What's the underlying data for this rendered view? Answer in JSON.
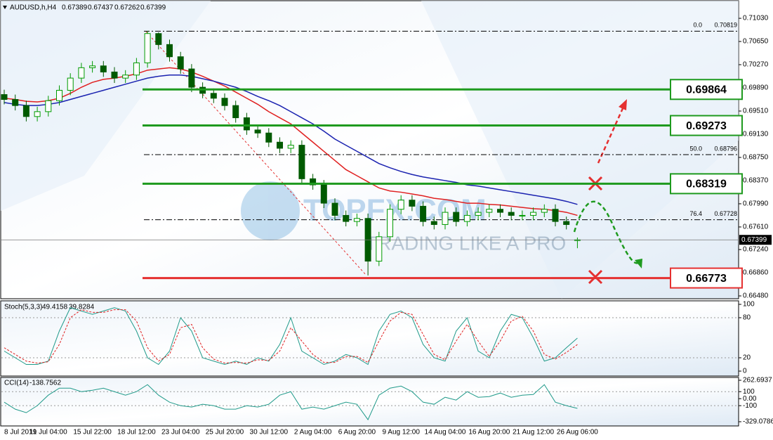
{
  "chart_data": [
    {
      "type": "candlestick",
      "symbol": "AUDUSD,h,H4",
      "categories": [
        "8 Jul 2019",
        null,
        null,
        null,
        "11 Jul 04:00",
        null,
        null,
        null,
        "15 Jul 22:00",
        null,
        null,
        null,
        "18 Jul 12:00",
        null,
        null,
        null,
        "23 Jul 04:00",
        null,
        null,
        null,
        "25 Jul 20:00",
        null,
        null,
        null,
        "30 Jul 12:00",
        null,
        null,
        null,
        "2 Aug 04:00",
        null,
        null,
        null,
        "6 Aug 20:00",
        null,
        null,
        null,
        "9 Aug 12:00",
        null,
        null,
        null,
        "14 Aug 04:00",
        null,
        null,
        null,
        "16 Aug 20:00",
        null,
        null,
        null,
        "21 Aug 12:00",
        null,
        null,
        null,
        "26 Aug 06:00"
      ],
      "open": [
        0.6978,
        0.697,
        0.696,
        0.6942,
        0.695,
        0.6968,
        0.6985,
        0.7005,
        0.7022,
        0.7025,
        0.7015,
        0.7005,
        0.701,
        0.703,
        0.7078,
        0.706,
        0.704,
        0.702,
        0.699,
        0.698,
        0.6972,
        0.696,
        0.694,
        0.692,
        0.6915,
        0.69,
        0.689,
        0.6895,
        0.684,
        0.683,
        0.68,
        0.678,
        0.677,
        0.6775,
        0.6705,
        0.6745,
        0.679,
        0.6805,
        0.6795,
        0.677,
        0.6765,
        0.6785,
        0.677,
        0.678,
        0.6785,
        0.679,
        0.6785,
        0.678,
        0.678,
        0.6785,
        0.679,
        0.677,
        0.67389
      ],
      "high": [
        0.6986,
        0.6978,
        0.6968,
        0.6958,
        0.6976,
        0.6993,
        0.7013,
        0.703,
        0.7033,
        0.7033,
        0.7023,
        0.7018,
        0.7038,
        0.70819,
        0.708,
        0.7068,
        0.7048,
        0.7028,
        0.6998,
        0.6988,
        0.698,
        0.6968,
        0.6948,
        0.6928,
        0.6923,
        0.6908,
        0.6903,
        0.6903,
        0.6848,
        0.6838,
        0.6808,
        0.6788,
        0.6783,
        0.6783,
        0.6753,
        0.6798,
        0.6813,
        0.6813,
        0.6803,
        0.6778,
        0.6793,
        0.6793,
        0.6788,
        0.6793,
        0.6798,
        0.6798,
        0.6793,
        0.6788,
        0.6793,
        0.6798,
        0.6798,
        0.6778,
        0.67437
      ],
      "low": [
        0.6962,
        0.6952,
        0.6934,
        0.6934,
        0.6942,
        0.696,
        0.6977,
        0.6997,
        0.7014,
        0.7007,
        0.6997,
        0.6997,
        0.7002,
        0.7022,
        0.7052,
        0.7032,
        0.7012,
        0.6982,
        0.6972,
        0.6964,
        0.6952,
        0.6932,
        0.6912,
        0.6907,
        0.6892,
        0.6882,
        0.6882,
        0.6832,
        0.6822,
        0.6792,
        0.6772,
        0.6762,
        0.6762,
        0.66815,
        0.6697,
        0.6737,
        0.6782,
        0.6787,
        0.6762,
        0.6757,
        0.6757,
        0.6762,
        0.6762,
        0.6772,
        0.6777,
        0.6777,
        0.6772,
        0.6772,
        0.6772,
        0.6777,
        0.6762,
        0.6757,
        0.67262
      ],
      "close": [
        0.697,
        0.696,
        0.6942,
        0.695,
        0.6968,
        0.6985,
        0.7005,
        0.7022,
        0.7025,
        0.7015,
        0.7005,
        0.701,
        0.703,
        0.7078,
        0.706,
        0.704,
        0.702,
        0.699,
        0.698,
        0.6972,
        0.696,
        0.694,
        0.692,
        0.6915,
        0.69,
        0.689,
        0.6895,
        0.684,
        0.683,
        0.68,
        0.678,
        0.677,
        0.6775,
        0.6705,
        0.6745,
        0.679,
        0.6805,
        0.6795,
        0.677,
        0.6765,
        0.6785,
        0.677,
        0.678,
        0.6785,
        0.679,
        0.6785,
        0.678,
        0.678,
        0.6785,
        0.679,
        0.677,
        0.6765,
        0.67399
      ],
      "up_color": "#009a00",
      "down_color": "#005a00",
      "overlays": [
        {
          "color": "#e02020",
          "values": [
            0.6972,
            0.697,
            0.6967,
            0.6966,
            0.6968,
            0.6972,
            0.698,
            0.699,
            0.6998,
            0.7003,
            0.7005,
            0.7008,
            0.7012,
            0.7018,
            0.702,
            0.7022,
            0.702,
            0.7015,
            0.7008,
            0.7,
            0.6992,
            0.6982,
            0.6972,
            0.6962,
            0.695,
            0.694,
            0.693,
            0.6915,
            0.69,
            0.6885,
            0.687,
            0.6855,
            0.6845,
            0.6835,
            0.6825,
            0.682,
            0.6818,
            0.6815,
            0.6812,
            0.6808,
            0.6806,
            0.6803,
            0.68,
            0.68,
            0.6798,
            0.6797,
            0.6795,
            0.6793,
            0.6791,
            0.679,
            0.6788,
            0.6785,
            0.678
          ]
        },
        {
          "color": "#1a22b0",
          "values": [
            0.6965,
            0.6962,
            0.696,
            0.696,
            0.6962,
            0.6965,
            0.697,
            0.6975,
            0.698,
            0.6985,
            0.699,
            0.6995,
            0.7,
            0.7005,
            0.7008,
            0.701,
            0.701,
            0.7008,
            0.7004,
            0.7,
            0.6995,
            0.699,
            0.6983,
            0.6975,
            0.6968,
            0.696,
            0.695,
            0.694,
            0.693,
            0.6918,
            0.6905,
            0.6895,
            0.6885,
            0.6875,
            0.6865,
            0.6858,
            0.6852,
            0.6847,
            0.6843,
            0.684,
            0.6837,
            0.6834,
            0.683,
            0.6828,
            0.6825,
            0.6822,
            0.6819,
            0.6816,
            0.6813,
            0.681,
            0.6807,
            0.6803,
            0.6798
          ]
        }
      ],
      "levels": [
        {
          "value": 0.69864,
          "color": "#1e9a1e"
        },
        {
          "value": 0.69273,
          "color": "#1e9a1e"
        },
        {
          "value": 0.68319,
          "color": "#1e9a1e"
        },
        {
          "value": 0.66773,
          "color": "#e53030"
        }
      ],
      "fib_levels": [
        {
          "label": "0.0",
          "value": 0.70819
        },
        {
          "label": "50.0",
          "value": 0.68796
        },
        {
          "label": "76.4",
          "value": 0.67728
        }
      ],
      "watermark": {
        "brand": "TOPFX.COM",
        "slogan": "TRADING LIKE A PRO"
      },
      "ylim": [
        0.66434,
        0.7133
      ],
      "yticks": [
        {
          "value": 0.7103,
          "label": "0.71030"
        },
        {
          "value": 0.7065,
          "label": "0.70650"
        },
        {
          "value": 0.7027,
          "label": "0.70270"
        },
        {
          "value": 0.6989,
          "label": "0.69890"
        },
        {
          "value": 0.6951,
          "label": "0.69510"
        },
        {
          "value": 0.6913,
          "label": "0.69130"
        },
        {
          "value": 0.6875,
          "label": "0.68750"
        },
        {
          "value": 0.6837,
          "label": "0.68370"
        },
        {
          "value": 0.6799,
          "label": "0.67990"
        },
        {
          "value": 0.6761,
          "label": "0.67610"
        },
        {
          "value": 0.6724,
          "label": "0.67240"
        },
        {
          "value": 0.6686,
          "label": "0.66860"
        },
        {
          "value": 0.6648,
          "label": "0.66480"
        }
      ]
    },
    {
      "type": "line",
      "name": "Stoch(5,3,3)",
      "series": [
        {
          "color": "#209a8a",
          "values": [
            30,
            20,
            10,
            10,
            15,
            60,
            95,
            90,
            85,
            90,
            95,
            90,
            60,
            20,
            10,
            30,
            80,
            60,
            20,
            15,
            10,
            15,
            10,
            20,
            15,
            40,
            80,
            30,
            20,
            10,
            15,
            25,
            20,
            10,
            60,
            85,
            90,
            80,
            40,
            20,
            15,
            60,
            80,
            30,
            20,
            60,
            85,
            80,
            50,
            15,
            20,
            35,
            49.4158
          ]
        },
        {
          "color": "#e02020",
          "dashed": true,
          "values": [
            35,
            25,
            15,
            12,
            14,
            40,
            80,
            92,
            88,
            88,
            92,
            92,
            75,
            35,
            15,
            25,
            65,
            70,
            35,
            18,
            12,
            13,
            12,
            17,
            16,
            30,
            65,
            45,
            25,
            13,
            13,
            22,
            22,
            13,
            45,
            75,
            88,
            85,
            55,
            25,
            17,
            45,
            70,
            45,
            22,
            45,
            75,
            82,
            60,
            25,
            18,
            28,
            39.8284
          ]
        }
      ],
      "ylim": [
        0,
        100
      ],
      "yticks": [
        100,
        80,
        20,
        0
      ],
      "grid_ticks": [
        80,
        20
      ]
    },
    {
      "type": "line",
      "name": "CCI(14)",
      "series": [
        {
          "color": "#209a8a",
          "values": [
            -50,
            -150,
            -200,
            -100,
            50,
            150,
            150,
            100,
            120,
            150,
            100,
            50,
            100,
            200,
            50,
            -50,
            -100,
            -120,
            -80,
            -100,
            -150,
            -150,
            -100,
            -120,
            -80,
            50,
            100,
            -150,
            -120,
            -150,
            -100,
            -50,
            -80,
            -300,
            50,
            150,
            180,
            100,
            -50,
            -80,
            20,
            -20,
            100,
            20,
            30,
            80,
            20,
            50,
            60,
            200,
            -50,
            -100,
            -138.7562
          ]
        }
      ],
      "ylim": [
        -329.0786,
        262.6937
      ],
      "yticks": [
        262.6937,
        100,
        {
          "value": 0,
          "label": "0.00"
        },
        -100,
        -329.0786
      ],
      "grid_ticks": [
        100,
        -100
      ]
    }
  ]
}
